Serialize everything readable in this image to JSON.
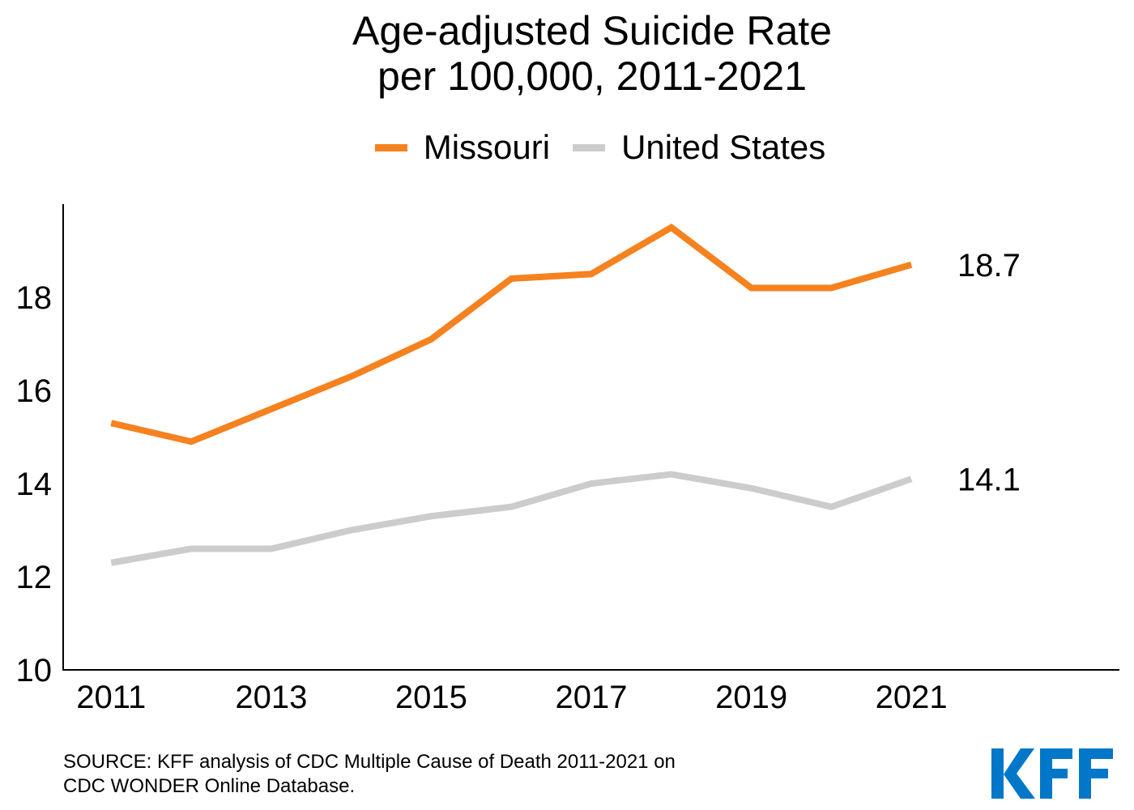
{
  "chart_data": {
    "type": "line",
    "title": [
      "Age-adjusted Suicide Rate",
      "per 100,000, 2011-2021"
    ],
    "xlabel": "",
    "ylabel": "",
    "x": [
      2011,
      2012,
      2013,
      2014,
      2015,
      2016,
      2017,
      2018,
      2019,
      2020,
      2021
    ],
    "xticks": [
      "2011",
      "2013",
      "2015",
      "2017",
      "2019",
      "2021"
    ],
    "yticks": [
      "10",
      "12",
      "14",
      "16",
      "18"
    ],
    "xlim": [
      2010.4,
      2023.6
    ],
    "ylim": [
      10,
      20
    ],
    "grid": false,
    "legend_position": "top-center",
    "series": [
      {
        "name": "Missouri",
        "color": "#f5821f",
        "values": [
          15.3,
          14.9,
          15.6,
          16.3,
          17.1,
          18.4,
          18.5,
          19.5,
          18.2,
          18.2,
          18.7
        ],
        "end_label": "18.7"
      },
      {
        "name": "United States",
        "color": "#cccccc",
        "values": [
          12.3,
          12.6,
          12.6,
          13.0,
          13.3,
          13.5,
          14.0,
          14.2,
          13.9,
          13.5,
          14.1
        ],
        "end_label": "14.1"
      }
    ]
  },
  "source": [
    "SOURCE: KFF analysis of CDC Multiple Cause of Death 2011-2021 on",
    "CDC WONDER Online Database."
  ],
  "logo": {
    "text": "KFF",
    "color": "#0077c8"
  }
}
